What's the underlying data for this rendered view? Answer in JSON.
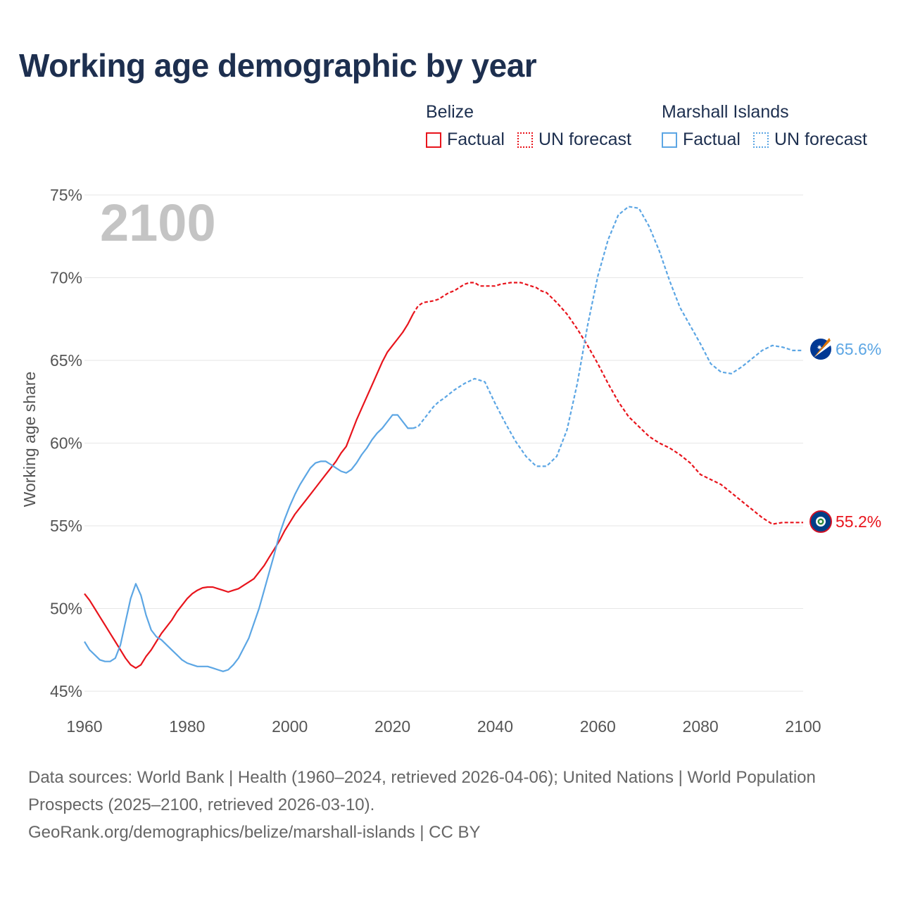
{
  "title": "Working age demographic by year",
  "legend": [
    {
      "country": "Belize",
      "factual_label": "Factual",
      "forecast_label": "UN forecast",
      "color": "#e8141c"
    },
    {
      "country": "Marshall Islands",
      "factual_label": "Factual",
      "forecast_label": "UN forecast",
      "color": "#5ca6e4"
    }
  ],
  "year_label": "2100",
  "end_labels": {
    "belize": "55.2%",
    "marshall": "65.6%"
  },
  "sources": {
    "line1": "Data sources: World Bank | Health (1960–2024, retrieved 2026-04-06); United Nations | World Population Prospects (2025–2100, retrieved 2026-03-10).",
    "line2": "GeoRank.org/demographics/belize/marshall-islands | CC BY"
  },
  "chart_data": {
    "type": "line",
    "title": "Working age demographic by year",
    "xlabel": "",
    "ylabel": "Working age share",
    "xlim": [
      1960,
      2100
    ],
    "ylim": [
      45,
      75
    ],
    "x_ticks": [
      1960,
      1980,
      2000,
      2020,
      2040,
      2060,
      2080,
      2100
    ],
    "y_ticks": [
      45,
      50,
      55,
      60,
      65,
      70,
      75
    ],
    "y_tick_labels": [
      "45%",
      "50%",
      "55%",
      "60%",
      "65%",
      "70%",
      "75%"
    ],
    "factual_end_year": 2024,
    "grid": true,
    "series": [
      {
        "name": "Belize",
        "color": "#e8141c",
        "x": [
          1960,
          1961,
          1962,
          1963,
          1964,
          1965,
          1966,
          1967,
          1968,
          1969,
          1970,
          1971,
          1972,
          1973,
          1974,
          1975,
          1976,
          1977,
          1978,
          1979,
          1980,
          1981,
          1982,
          1983,
          1984,
          1985,
          1986,
          1987,
          1988,
          1989,
          1990,
          1991,
          1992,
          1993,
          1994,
          1995,
          1996,
          1997,
          1998,
          1999,
          2000,
          2001,
          2002,
          2003,
          2004,
          2005,
          2006,
          2007,
          2008,
          2009,
          2010,
          2011,
          2012,
          2013,
          2014,
          2015,
          2016,
          2017,
          2018,
          2019,
          2020,
          2021,
          2022,
          2023,
          2024,
          2025,
          2026,
          2027,
          2028,
          2029,
          2030,
          2031,
          2032,
          2033,
          2034,
          2035,
          2036,
          2037,
          2038,
          2039,
          2040,
          2041,
          2042,
          2043,
          2044,
          2045,
          2046,
          2047,
          2048,
          2049,
          2050,
          2052,
          2054,
          2056,
          2058,
          2060,
          2062,
          2064,
          2066,
          2068,
          2070,
          2072,
          2074,
          2076,
          2078,
          2080,
          2082,
          2084,
          2086,
          2088,
          2090,
          2092,
          2094,
          2096,
          2098,
          2100
        ],
        "y": [
          50.9,
          50.5,
          50.0,
          49.5,
          49.0,
          48.5,
          48.0,
          47.5,
          47.0,
          46.6,
          46.4,
          46.6,
          47.1,
          47.5,
          48.0,
          48.5,
          48.9,
          49.3,
          49.8,
          50.2,
          50.6,
          50.9,
          51.1,
          51.25,
          51.3,
          51.3,
          51.2,
          51.1,
          51.0,
          51.1,
          51.2,
          51.4,
          51.6,
          51.8,
          52.2,
          52.6,
          53.1,
          53.6,
          54.1,
          54.7,
          55.2,
          55.7,
          56.1,
          56.5,
          56.9,
          57.3,
          57.7,
          58.1,
          58.5,
          58.9,
          59.4,
          59.8,
          60.6,
          61.4,
          62.1,
          62.8,
          63.5,
          64.2,
          64.9,
          65.5,
          65.9,
          66.3,
          66.7,
          67.2,
          67.8,
          68.3,
          68.5,
          68.55,
          68.6,
          68.7,
          68.9,
          69.1,
          69.2,
          69.4,
          69.6,
          69.7,
          69.7,
          69.5,
          69.5,
          69.5,
          69.5,
          69.6,
          69.65,
          69.7,
          69.7,
          69.7,
          69.6,
          69.5,
          69.4,
          69.2,
          69.1,
          68.5,
          67.8,
          66.9,
          65.9,
          64.8,
          63.6,
          62.5,
          61.6,
          61.0,
          60.4,
          60.0,
          59.7,
          59.3,
          58.8,
          58.1,
          57.8,
          57.5,
          57.0,
          56.5,
          56.0,
          55.5,
          55.1,
          55.2,
          55.2,
          55.2
        ]
      },
      {
        "name": "Marshall Islands",
        "color": "#5ca6e4",
        "x": [
          1960,
          1961,
          1962,
          1963,
          1964,
          1965,
          1966,
          1967,
          1968,
          1969,
          1970,
          1971,
          1972,
          1973,
          1974,
          1975,
          1976,
          1977,
          1978,
          1979,
          1980,
          1981,
          1982,
          1983,
          1984,
          1985,
          1986,
          1987,
          1988,
          1989,
          1990,
          1991,
          1992,
          1993,
          1994,
          1995,
          1996,
          1997,
          1998,
          1999,
          2000,
          2001,
          2002,
          2003,
          2004,
          2005,
          2006,
          2007,
          2008,
          2009,
          2010,
          2011,
          2012,
          2013,
          2014,
          2015,
          2016,
          2017,
          2018,
          2019,
          2020,
          2021,
          2022,
          2023,
          2024,
          2025,
          2026,
          2027,
          2028,
          2029,
          2030,
          2032,
          2034,
          2036,
          2038,
          2040,
          2042,
          2044,
          2046,
          2048,
          2050,
          2052,
          2054,
          2056,
          2058,
          2060,
          2062,
          2064,
          2066,
          2068,
          2070,
          2072,
          2074,
          2076,
          2078,
          2080,
          2082,
          2084,
          2086,
          2088,
          2090,
          2092,
          2094,
          2096,
          2098,
          2100
        ],
        "y": [
          48.0,
          47.5,
          47.2,
          46.9,
          46.8,
          46.8,
          47.0,
          47.8,
          49.2,
          50.6,
          51.5,
          50.8,
          49.6,
          48.7,
          48.3,
          48.1,
          47.8,
          47.5,
          47.2,
          46.9,
          46.7,
          46.6,
          46.5,
          46.5,
          46.5,
          46.4,
          46.3,
          46.2,
          46.3,
          46.6,
          47.0,
          47.6,
          48.2,
          49.1,
          50.0,
          51.1,
          52.2,
          53.3,
          54.5,
          55.4,
          56.2,
          56.9,
          57.5,
          58.0,
          58.5,
          58.8,
          58.9,
          58.9,
          58.7,
          58.5,
          58.3,
          58.2,
          58.4,
          58.8,
          59.3,
          59.7,
          60.2,
          60.6,
          60.9,
          61.3,
          61.7,
          61.7,
          61.3,
          60.9,
          60.9,
          61.0,
          61.4,
          61.8,
          62.2,
          62.5,
          62.7,
          63.2,
          63.6,
          63.9,
          63.7,
          62.4,
          61.2,
          60.1,
          59.2,
          58.6,
          58.6,
          59.2,
          60.8,
          63.6,
          67.1,
          70.1,
          72.3,
          73.8,
          74.3,
          74.2,
          73.1,
          71.6,
          69.8,
          68.2,
          67.1,
          66.0,
          64.8,
          64.3,
          64.2,
          64.6,
          65.1,
          65.6,
          65.9,
          65.8,
          65.6,
          65.6
        ]
      }
    ]
  }
}
